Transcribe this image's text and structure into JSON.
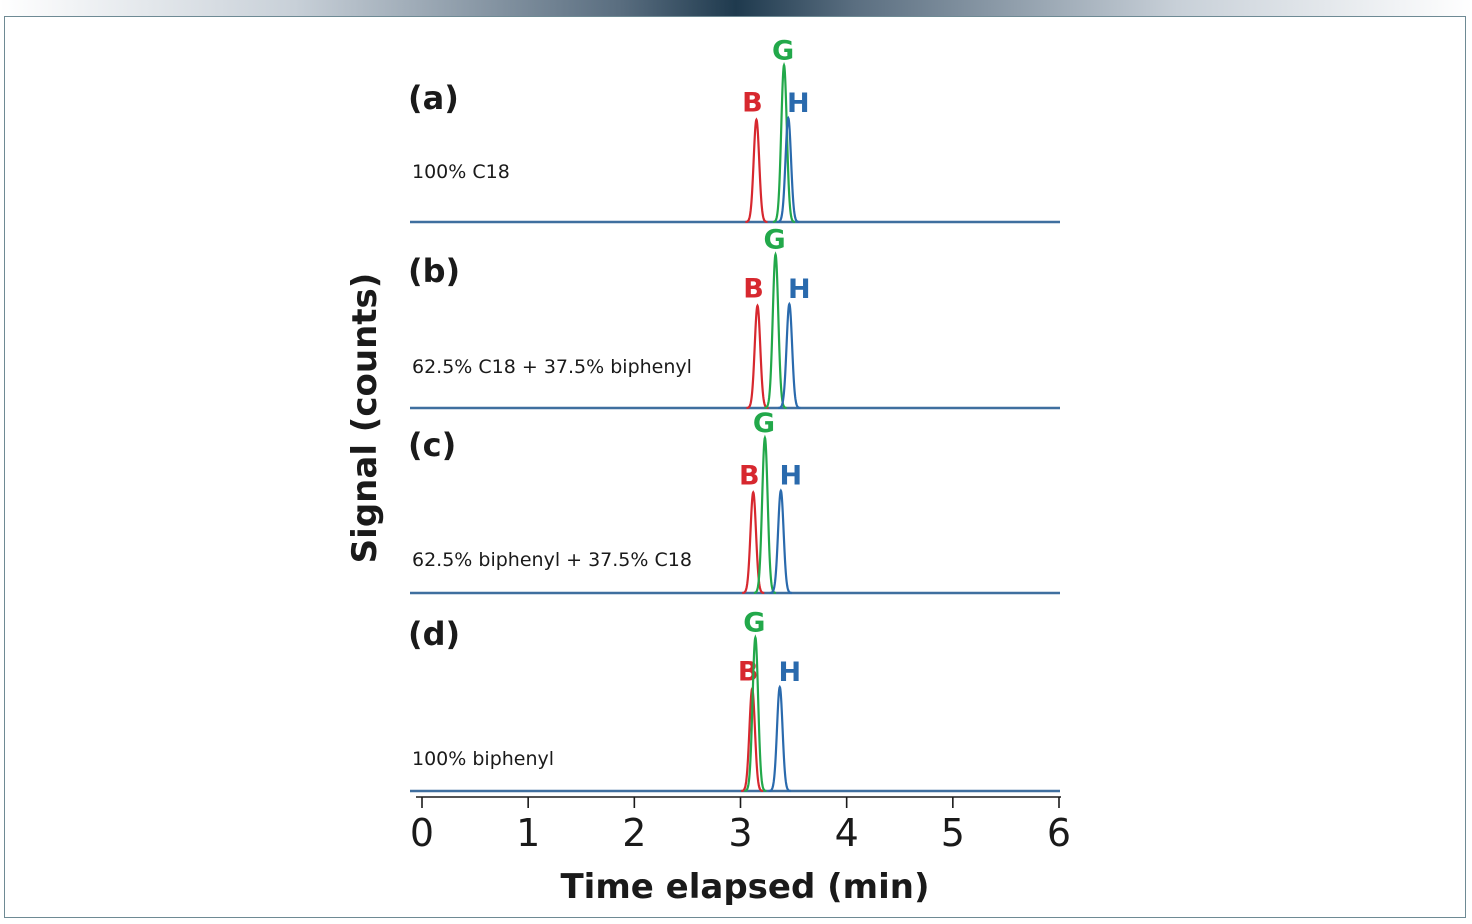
{
  "chart_data": {
    "type": "line",
    "xlabel": "Time elapsed (min)",
    "ylabel": "Signal (counts)",
    "xlim": [
      0,
      6
    ],
    "xticks": [
      0,
      1,
      2,
      3,
      4,
      5,
      6
    ],
    "colors": {
      "B": "#d7282f",
      "G": "#22a84a",
      "H": "#2a6aad",
      "baseline": "#3f6f9f"
    },
    "panels": [
      {
        "label": "(a)",
        "condition": "100% C18",
        "peaks": [
          {
            "name": "B",
            "time": 3.15,
            "height": 0.62
          },
          {
            "name": "G",
            "time": 3.41,
            "height": 0.95
          },
          {
            "name": "H",
            "time": 3.45,
            "height": 0.63
          }
        ]
      },
      {
        "label": "(b)",
        "condition": "62.5% C18 + 37.5% biphenyl",
        "peaks": [
          {
            "name": "B",
            "time": 3.16,
            "height": 0.62
          },
          {
            "name": "G",
            "time": 3.33,
            "height": 0.93
          },
          {
            "name": "H",
            "time": 3.46,
            "height": 0.63
          }
        ]
      },
      {
        "label": "(c)",
        "condition": "62.5% biphenyl + 37.5% C18",
        "peaks": [
          {
            "name": "B",
            "time": 3.12,
            "height": 0.61
          },
          {
            "name": "G",
            "time": 3.23,
            "height": 0.94
          },
          {
            "name": "H",
            "time": 3.38,
            "height": 0.62
          }
        ]
      },
      {
        "label": "(d)",
        "condition": "100% biphenyl",
        "peaks": [
          {
            "name": "B",
            "time": 3.11,
            "height": 0.62
          },
          {
            "name": "G",
            "time": 3.14,
            "height": 0.93
          },
          {
            "name": "H",
            "time": 3.37,
            "height": 0.63
          }
        ]
      }
    ]
  }
}
